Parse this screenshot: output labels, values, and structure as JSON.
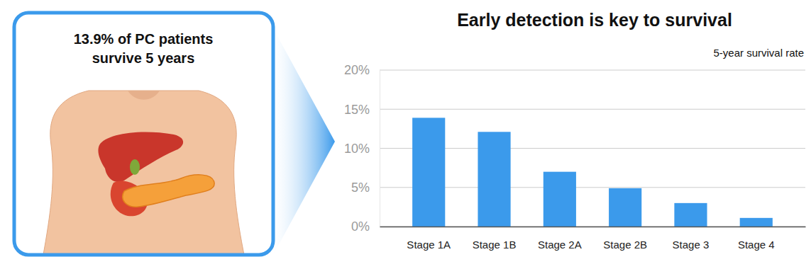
{
  "chart_data": {
    "type": "bar",
    "title": "Early detection is key to survival",
    "subtitle": "5-year survival rate",
    "annotations": [
      "13.9% of PC patients",
      "survive 5 years"
    ],
    "categories": [
      "Stage 1A",
      "Stage 1B",
      "Stage 2A",
      "Stage 2B",
      "Stage 3",
      "Stage 4"
    ],
    "values": [
      13.9,
      12.1,
      7.0,
      4.9,
      3.0,
      1.1
    ],
    "color": "#3b9aeb",
    "ylim": [
      0,
      20
    ],
    "yticks": [
      {
        "value": 0,
        "label": "0%"
      },
      {
        "value": 5,
        "label": "5%"
      },
      {
        "value": 10,
        "label": "10%"
      },
      {
        "value": 15,
        "label": "15%"
      },
      {
        "value": 20,
        "label": "20%"
      }
    ],
    "grid": true
  }
}
